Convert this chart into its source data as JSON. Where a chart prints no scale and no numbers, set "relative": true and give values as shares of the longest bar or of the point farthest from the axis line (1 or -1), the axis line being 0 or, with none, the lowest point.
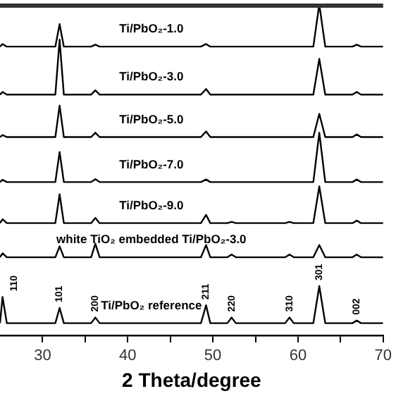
{
  "chart_data": {
    "type": "line",
    "xlabel": "2 Theta/degree",
    "relative": true,
    "xlim": [
      25,
      70
    ],
    "xticks": [
      30,
      {
        "value": 35,
        "label": null
      },
      40,
      {
        "value": 45,
        "label": null
      },
      50,
      {
        "value": 55,
        "label": null
      },
      60,
      {
        "value": 65,
        "label": null
      },
      70
    ],
    "x": [
      25,
      25.3,
      25.8,
      31.5,
      32.0,
      32.5,
      35.7,
      36.2,
      36.7,
      48.6,
      49.2,
      49.7,
      51.7,
      52.2,
      52.7,
      58.5,
      59.0,
      59.5,
      61.8,
      62.5,
      63.2,
      66.4,
      66.9,
      67.4,
      70
    ],
    "series": [
      {
        "name": "Ti/PbO₂-1.0",
        "color": "#000000",
        "values": [
          0.872,
          0.88,
          0.872,
          0.872,
          0.94,
          0.872,
          0.872,
          0.878,
          0.872,
          0.872,
          0.88,
          0.872,
          0.872,
          0.872,
          0.872,
          0.872,
          0.872,
          0.872,
          0.872,
          1,
          0.872,
          0.872,
          0.878,
          0.872,
          0.872
        ]
      },
      {
        "name": "Ti/PbO₂-3.0",
        "color": "#000000",
        "values": [
          0.727,
          0.735,
          0.727,
          0.727,
          0.893,
          0.727,
          0.727,
          0.74,
          0.727,
          0.727,
          0.744,
          0.727,
          0.727,
          0.727,
          0.727,
          0.727,
          0.727,
          0.727,
          0.727,
          0.835,
          0.727,
          0.727,
          0.735,
          0.727,
          0.727
        ]
      },
      {
        "name": "Ti/PbO₂-5.0",
        "color": "#000000",
        "values": [
          0.599,
          0.605,
          0.599,
          0.599,
          0.694,
          0.599,
          0.599,
          0.612,
          0.599,
          0.599,
          0.616,
          0.599,
          0.599,
          0.599,
          0.599,
          0.599,
          0.599,
          0.599,
          0.599,
          0.669,
          0.599,
          0.599,
          0.607,
          0.599,
          0.599
        ]
      },
      {
        "name": "Ti/PbO₂-7.0",
        "color": "#000000",
        "values": [
          0.463,
          0.47,
          0.463,
          0.463,
          0.554,
          0.463,
          0.463,
          0.472,
          0.463,
          0.463,
          0.471,
          0.463,
          0.463,
          0.463,
          0.463,
          0.463,
          0.463,
          0.463,
          0.463,
          0.612,
          0.463,
          0.463,
          0.471,
          0.463,
          0.463
        ]
      },
      {
        "name": "Ti/PbO₂-9.0",
        "color": "#000000",
        "values": [
          0.339,
          0.351,
          0.339,
          0.339,
          0.426,
          0.339,
          0.339,
          0.355,
          0.339,
          0.339,
          0.364,
          0.339,
          0.339,
          0.343,
          0.339,
          0.339,
          0.343,
          0.339,
          0.339,
          0.45,
          0.339,
          0.339,
          0.347,
          0.339,
          0.339
        ]
      },
      {
        "name": "white TiO₂ embedded Ti/PbO₂-3.0",
        "color": "#000000",
        "values": [
          0.236,
          0.248,
          0.236,
          0.236,
          0.269,
          0.236,
          0.236,
          0.277,
          0.236,
          0.236,
          0.273,
          0.236,
          0.236,
          0.244,
          0.236,
          0.236,
          0.244,
          0.236,
          0.236,
          0.273,
          0.236,
          0.236,
          0.244,
          0.236,
          0.236
        ]
      },
      {
        "name": "Ti/PbO₂ reference",
        "color": "#000000",
        "values": [
          0.037,
          0.116,
          0.037,
          0.037,
          0.083,
          0.037,
          0.037,
          0.054,
          0.037,
          0.037,
          0.091,
          0.037,
          0.037,
          0.054,
          0.037,
          0.037,
          0.054,
          0.037,
          0.037,
          0.149,
          0.037,
          0.037,
          0.045,
          0.037,
          0.037
        ]
      }
    ],
    "annotations": [
      {
        "text": "110",
        "x": 25.3,
        "y": 0.116
      },
      {
        "text": "101",
        "x": 32.0,
        "y": 0.083
      },
      {
        "text": "200",
        "x": 36.2,
        "y": 0.054
      },
      {
        "text": "211",
        "x": 49.2,
        "y": 0.091
      },
      {
        "text": "220",
        "x": 52.2,
        "y": 0.054
      },
      {
        "text": "310",
        "x": 59.0,
        "y": 0.054
      },
      {
        "text": "301",
        "x": 62.5,
        "y": 0.149
      },
      {
        "text": "002",
        "x": 66.9,
        "y": 0.045
      }
    ],
    "marker": "none",
    "line_style": "solid",
    "grid": false,
    "legend": false
  }
}
